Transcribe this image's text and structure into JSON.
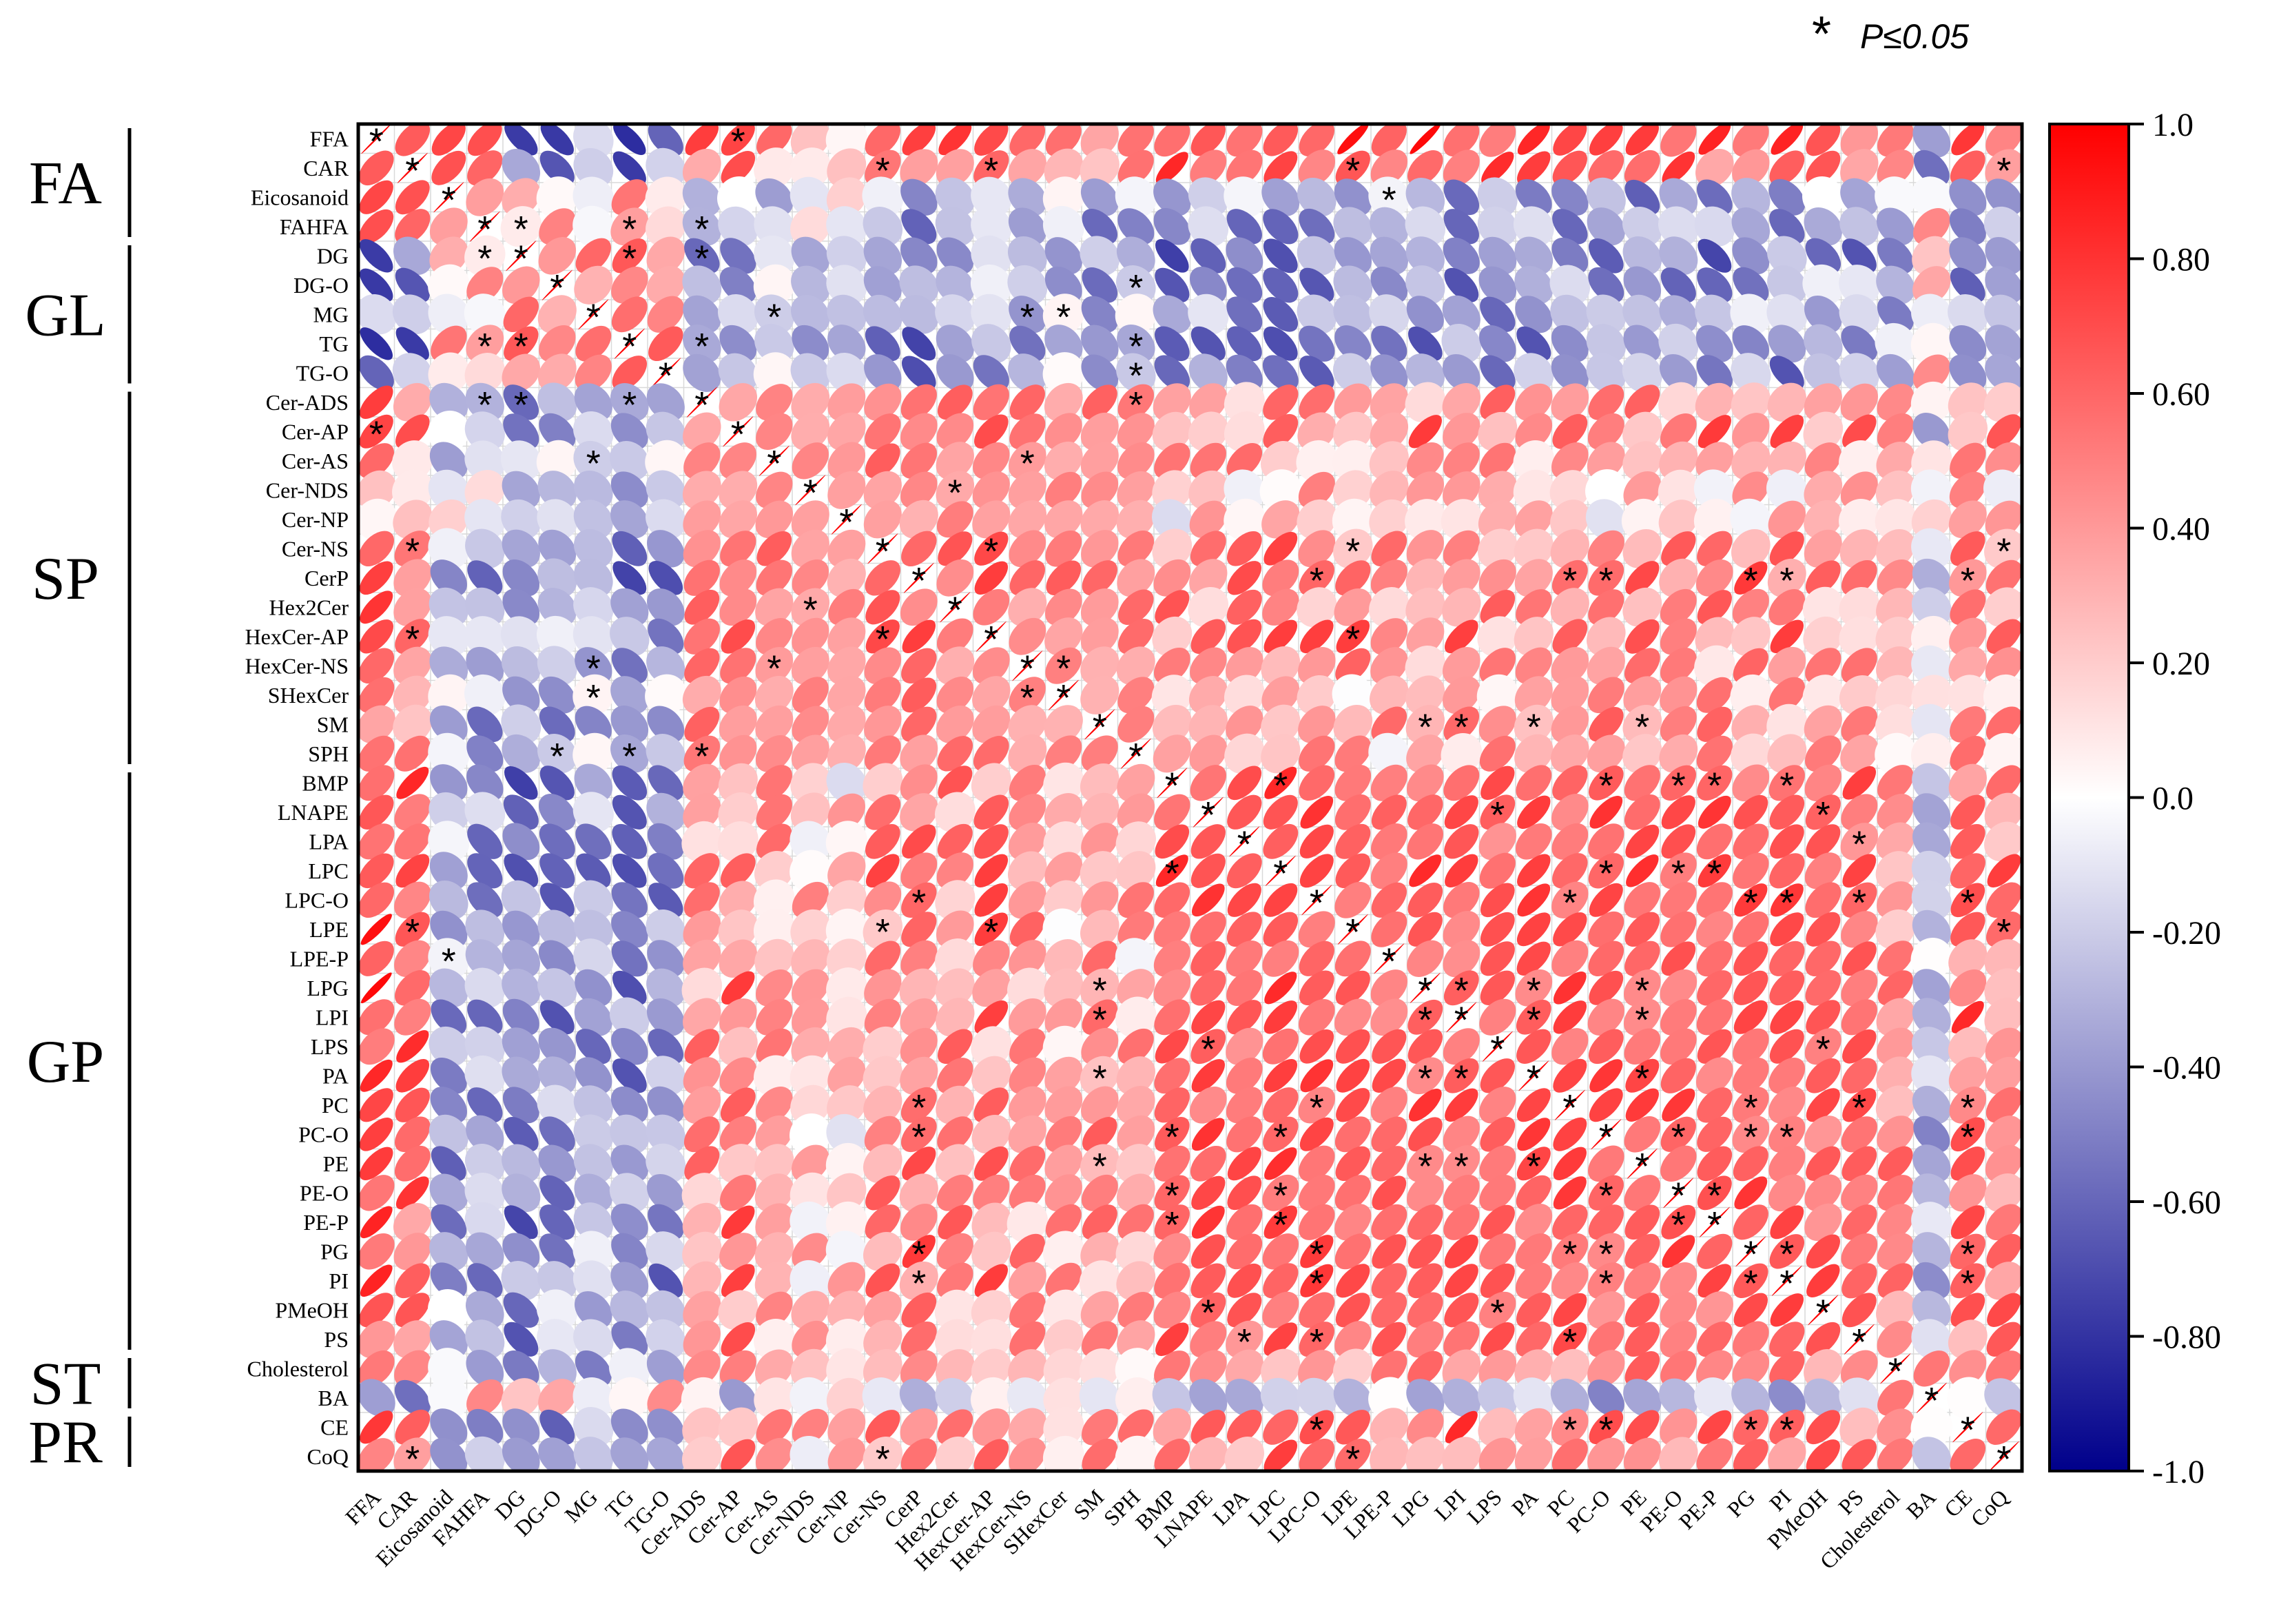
{
  "legend_note": {
    "symbol": "*",
    "text": "P≤0.05"
  },
  "chart_data": {
    "type": "heatmap",
    "subtype": "correlation-ellipse",
    "labels": [
      "FFA",
      "CAR",
      "Eicosanoid",
      "FAHFA",
      "DG",
      "DG-O",
      "MG",
      "TG",
      "TG-O",
      "Cer-ADS",
      "Cer-AP",
      "Cer-AS",
      "Cer-NDS",
      "Cer-NP",
      "Cer-NS",
      "CerP",
      "Hex2Cer",
      "HexCer-AP",
      "HexCer-NS",
      "SHexCer",
      "SM",
      "SPH",
      "BMP",
      "LNAPE",
      "LPA",
      "LPC",
      "LPC-O",
      "LPE",
      "LPE-P",
      "LPG",
      "LPI",
      "LPS",
      "PA",
      "PC",
      "PC-O",
      "PE",
      "PE-O",
      "PE-P",
      "PG",
      "PI",
      "PMeOH",
      "PS",
      "Cholesterol",
      "BA",
      "CE",
      "CoQ"
    ],
    "groups": [
      {
        "name": "FA",
        "start": 0,
        "end": 3
      },
      {
        "name": "GL",
        "start": 4,
        "end": 8
      },
      {
        "name": "SP",
        "start": 9,
        "end": 21
      },
      {
        "name": "GP",
        "start": 22,
        "end": 41
      },
      {
        "name": "ST",
        "start": 42,
        "end": 43
      },
      {
        "name": "PR",
        "start": 44,
        "end": 45
      }
    ],
    "colorbar": {
      "min": -1.0,
      "max": 1.0,
      "ticks": [
        "1.0",
        "0.80",
        "0.60",
        "0.40",
        "0.20",
        "0.0",
        "-0.20",
        "-0.40",
        "-0.60",
        "-0.80",
        "-1.0"
      ],
      "colors": {
        "high": "#ff0000",
        "mid": "#ffffff",
        "low": "#00008b"
      }
    },
    "profiles": {
      "FA": [
        1,
        0.9,
        -0.5,
        -0.6
      ],
      "GL": [
        -0.7,
        -0.6,
        -0.5,
        -0.7,
        -0.6
      ],
      "SP": [
        0.6,
        0.7,
        0.5,
        0.3,
        0.2,
        0.7,
        0.8,
        0.6,
        0.7,
        0.5,
        0.4,
        0.6,
        0.5
      ],
      "GP": [
        0.8,
        0.8,
        0.7,
        0.9,
        0.8,
        0.8,
        0.6,
        0.8,
        0.8,
        0.7,
        0.8,
        0.8,
        0.8,
        0.8,
        0.8,
        0.8,
        0.8,
        0.8,
        0.7,
        0.7
      ],
      "ST": [
        0.6,
        -0.4
      ],
      "PR": [
        0.8,
        0.7
      ]
    },
    "significant_cells": [
      [
        0,
        0
      ],
      [
        0,
        10
      ],
      [
        1,
        1
      ],
      [
        1,
        14
      ],
      [
        1,
        17
      ],
      [
        1,
        27
      ],
      [
        1,
        45
      ],
      [
        2,
        2
      ],
      [
        2,
        28
      ],
      [
        3,
        3
      ],
      [
        3,
        4
      ],
      [
        3,
        7
      ],
      [
        3,
        9
      ],
      [
        4,
        3
      ],
      [
        4,
        4
      ],
      [
        4,
        7
      ],
      [
        4,
        9
      ],
      [
        5,
        5
      ],
      [
        5,
        21
      ],
      [
        6,
        6
      ],
      [
        6,
        11
      ],
      [
        6,
        18
      ],
      [
        6,
        19
      ],
      [
        7,
        3
      ],
      [
        7,
        4
      ],
      [
        7,
        7
      ],
      [
        7,
        9
      ],
      [
        7,
        21
      ],
      [
        8,
        8
      ],
      [
        8,
        21
      ],
      [
        9,
        3
      ],
      [
        9,
        4
      ],
      [
        9,
        7
      ],
      [
        9,
        9
      ],
      [
        9,
        21
      ],
      [
        10,
        0
      ],
      [
        10,
        10
      ],
      [
        11,
        6
      ],
      [
        11,
        11
      ],
      [
        11,
        18
      ],
      [
        12,
        12
      ],
      [
        12,
        16
      ],
      [
        13,
        13
      ],
      [
        14,
        1
      ],
      [
        14,
        14
      ],
      [
        14,
        17
      ],
      [
        14,
        27
      ],
      [
        14,
        45
      ],
      [
        15,
        15
      ],
      [
        15,
        26
      ],
      [
        15,
        33
      ],
      [
        15,
        34
      ],
      [
        15,
        38
      ],
      [
        15,
        39
      ],
      [
        15,
        44
      ],
      [
        16,
        12
      ],
      [
        16,
        16
      ],
      [
        17,
        1
      ],
      [
        17,
        14
      ],
      [
        17,
        17
      ],
      [
        17,
        27
      ],
      [
        18,
        6
      ],
      [
        18,
        11
      ],
      [
        18,
        18
      ],
      [
        18,
        19
      ],
      [
        19,
        6
      ],
      [
        19,
        18
      ],
      [
        19,
        19
      ],
      [
        20,
        20
      ],
      [
        20,
        29
      ],
      [
        20,
        30
      ],
      [
        20,
        32
      ],
      [
        20,
        35
      ],
      [
        21,
        5
      ],
      [
        21,
        7
      ],
      [
        21,
        9
      ],
      [
        21,
        21
      ],
      [
        22,
        22
      ],
      [
        22,
        25
      ],
      [
        22,
        34
      ],
      [
        22,
        36
      ],
      [
        22,
        37
      ],
      [
        22,
        39
      ],
      [
        23,
        23
      ],
      [
        23,
        31
      ],
      [
        23,
        40
      ],
      [
        24,
        24
      ],
      [
        24,
        41
      ],
      [
        25,
        22
      ],
      [
        25,
        25
      ],
      [
        25,
        34
      ],
      [
        25,
        36
      ],
      [
        25,
        37
      ],
      [
        26,
        15
      ],
      [
        26,
        26
      ],
      [
        26,
        33
      ],
      [
        26,
        38
      ],
      [
        26,
        39
      ],
      [
        26,
        41
      ],
      [
        26,
        44
      ],
      [
        27,
        1
      ],
      [
        27,
        14
      ],
      [
        27,
        17
      ],
      [
        27,
        27
      ],
      [
        27,
        45
      ],
      [
        28,
        2
      ],
      [
        28,
        28
      ],
      [
        29,
        20
      ],
      [
        29,
        29
      ],
      [
        29,
        30
      ],
      [
        29,
        32
      ],
      [
        29,
        35
      ],
      [
        30,
        20
      ],
      [
        30,
        29
      ],
      [
        30,
        30
      ],
      [
        30,
        32
      ],
      [
        30,
        35
      ],
      [
        31,
        23
      ],
      [
        31,
        31
      ],
      [
        31,
        40
      ],
      [
        32,
        20
      ],
      [
        32,
        29
      ],
      [
        32,
        30
      ],
      [
        32,
        32
      ],
      [
        32,
        35
      ],
      [
        33,
        15
      ],
      [
        33,
        26
      ],
      [
        33,
        33
      ],
      [
        33,
        38
      ],
      [
        33,
        41
      ],
      [
        33,
        44
      ],
      [
        34,
        15
      ],
      [
        34,
        22
      ],
      [
        34,
        25
      ],
      [
        34,
        34
      ],
      [
        34,
        36
      ],
      [
        34,
        38
      ],
      [
        34,
        39
      ],
      [
        34,
        44
      ],
      [
        35,
        20
      ],
      [
        35,
        29
      ],
      [
        35,
        30
      ],
      [
        35,
        32
      ],
      [
        35,
        35
      ],
      [
        36,
        22
      ],
      [
        36,
        25
      ],
      [
        36,
        34
      ],
      [
        36,
        36
      ],
      [
        36,
        37
      ],
      [
        37,
        22
      ],
      [
        37,
        25
      ],
      [
        37,
        36
      ],
      [
        37,
        37
      ],
      [
        38,
        15
      ],
      [
        38,
        26
      ],
      [
        38,
        33
      ],
      [
        38,
        34
      ],
      [
        38,
        38
      ],
      [
        38,
        39
      ],
      [
        38,
        44
      ],
      [
        39,
        15
      ],
      [
        39,
        26
      ],
      [
        39,
        34
      ],
      [
        39,
        38
      ],
      [
        39,
        39
      ],
      [
        39,
        44
      ],
      [
        40,
        23
      ],
      [
        40,
        31
      ],
      [
        40,
        40
      ],
      [
        41,
        24
      ],
      [
        41,
        26
      ],
      [
        41,
        33
      ],
      [
        41,
        41
      ],
      [
        42,
        42
      ],
      [
        43,
        43
      ],
      [
        44,
        26
      ],
      [
        44,
        33
      ],
      [
        44,
        34
      ],
      [
        44,
        38
      ],
      [
        44,
        39
      ],
      [
        44,
        44
      ],
      [
        45,
        1
      ],
      [
        45,
        14
      ],
      [
        45,
        27
      ],
      [
        45,
        45
      ]
    ]
  }
}
